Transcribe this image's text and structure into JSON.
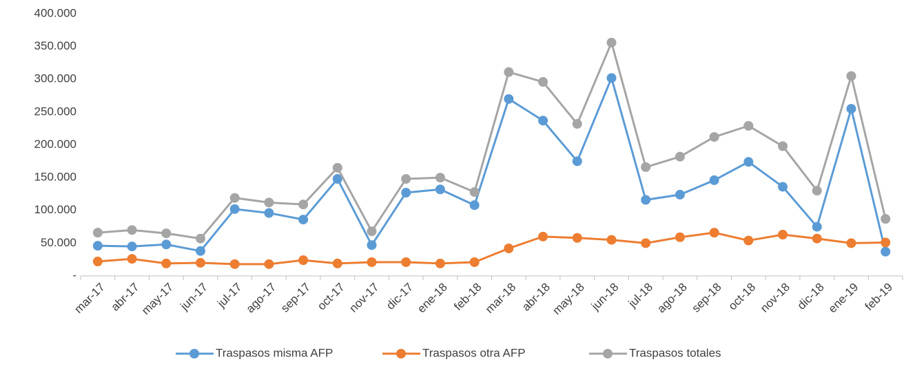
{
  "chart_data": {
    "type": "line",
    "categories": [
      "mar-17",
      "abr-17",
      "may-17",
      "jun-17",
      "jul-17",
      "ago-17",
      "sep-17",
      "oct-17",
      "nov-17",
      "dic-17",
      "ene-18",
      "feb-18",
      "mar-18",
      "abr-18",
      "may-18",
      "jun-18",
      "jul-18",
      "ago-18",
      "sep-18",
      "oct-18",
      "nov-18",
      "dic-18",
      "ene-19",
      "feb-19"
    ],
    "series": [
      {
        "name": "Traspasos misma AFP",
        "color": "#5b9bd5",
        "values": [
          46000,
          45000,
          48000,
          38000,
          102000,
          96000,
          86000,
          148000,
          47000,
          127000,
          132000,
          108000,
          270000,
          237000,
          175000,
          302000,
          116000,
          124000,
          146000,
          174000,
          136000,
          75000,
          255000,
          37000
        ]
      },
      {
        "name": "Traspasos otra AFP",
        "color": "#ed7d31",
        "values": [
          22000,
          26000,
          19000,
          20000,
          18000,
          18000,
          24000,
          19000,
          21000,
          21000,
          19000,
          21000,
          42000,
          60000,
          58000,
          55000,
          50000,
          59000,
          66000,
          54000,
          63000,
          57000,
          50000,
          51000
        ]
      },
      {
        "name": "Traspasos totales",
        "color": "#a5a5a5",
        "values": [
          66000,
          70000,
          65000,
          57000,
          119000,
          112000,
          109000,
          165000,
          68000,
          148000,
          150000,
          128000,
          311000,
          296000,
          232000,
          356000,
          166000,
          182000,
          212000,
          229000,
          198000,
          130000,
          305000,
          87000
        ]
      }
    ],
    "ylim": [
      0,
      400000
    ],
    "yticks": [
      {
        "value": 0,
        "label": "-"
      },
      {
        "value": 50000,
        "label": "50.000"
      },
      {
        "value": 100000,
        "label": "100.000"
      },
      {
        "value": 150000,
        "label": "150.000"
      },
      {
        "value": 200000,
        "label": "200.000"
      },
      {
        "value": 250000,
        "label": "250.000"
      },
      {
        "value": 300000,
        "label": "300.000"
      },
      {
        "value": 350000,
        "label": "350.000"
      },
      {
        "value": 400000,
        "label": "400.000"
      }
    ],
    "grid": false,
    "legend": "bottom"
  }
}
